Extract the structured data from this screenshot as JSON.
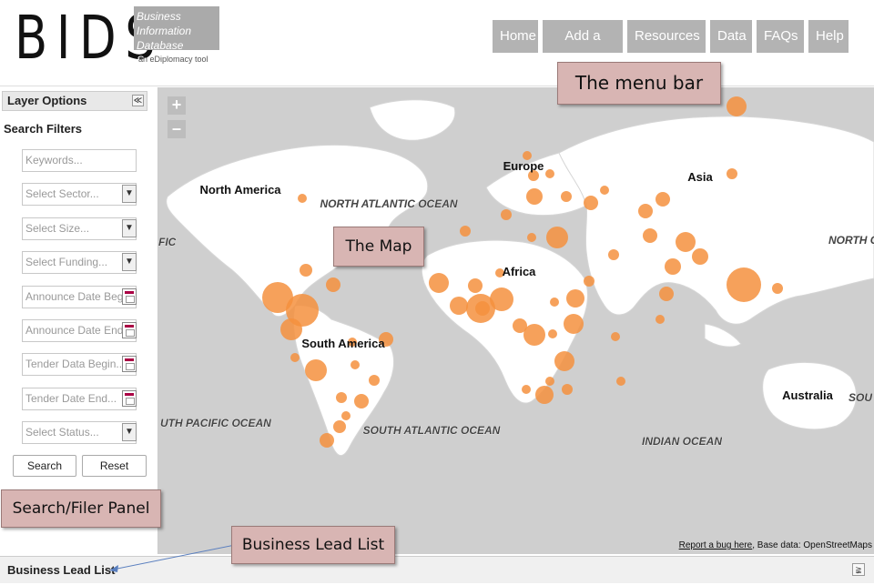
{
  "logo": {
    "main": "BIDS",
    "box_text": "Business Information Database System",
    "tagline": "an eDiplomacy tool"
  },
  "menu": [
    "Home",
    "Add a Lead",
    "Resources",
    "Data",
    "FAQs",
    "Help"
  ],
  "sidebar": {
    "layer_options": "Layer Options",
    "filters_title": "Search Filters",
    "fields": [
      {
        "placeholder": "Keywords...",
        "kind": "text"
      },
      {
        "placeholder": "Select Sector...",
        "kind": "select"
      },
      {
        "placeholder": "Select Size...",
        "kind": "select"
      },
      {
        "placeholder": "Select Funding...",
        "kind": "select"
      },
      {
        "placeholder": "Announce Date Beg",
        "kind": "date"
      },
      {
        "placeholder": "Announce Date End",
        "kind": "date"
      },
      {
        "placeholder": "Tender Data Begin...",
        "kind": "date"
      },
      {
        "placeholder": "Tender Date End...",
        "kind": "date"
      },
      {
        "placeholder": "Select Status...",
        "kind": "select"
      }
    ],
    "search_button": "Search",
    "reset_button": "Reset"
  },
  "map": {
    "labels": {
      "north_america": "North America",
      "europe": "Europe",
      "asia": "Asia",
      "africa": "Africa",
      "south_america": "South America",
      "australia": "Australia",
      "north_atlantic": "NORTH ATLANTIC OCEAN",
      "south_atlantic": "SOUTH ATLANTIC OCEAN",
      "indian_ocean": "INDIAN OCEAN",
      "south_pacific_left": "UTH PACIFIC OCEAN",
      "pacific_left": "FIC",
      "north_right": "NORTH OCE",
      "sou_right": "SOU"
    },
    "credit_link": "Report a bug here",
    "credit_text": ", Base data: OpenStreetMaps",
    "marker_color": "#f5903e"
  },
  "bottom": {
    "title": "Business Lead List"
  },
  "callouts": {
    "menu_bar": "The menu bar",
    "map": "The Map",
    "panel": "Search/Filer Panel",
    "lead_list": "Business Lead List"
  }
}
